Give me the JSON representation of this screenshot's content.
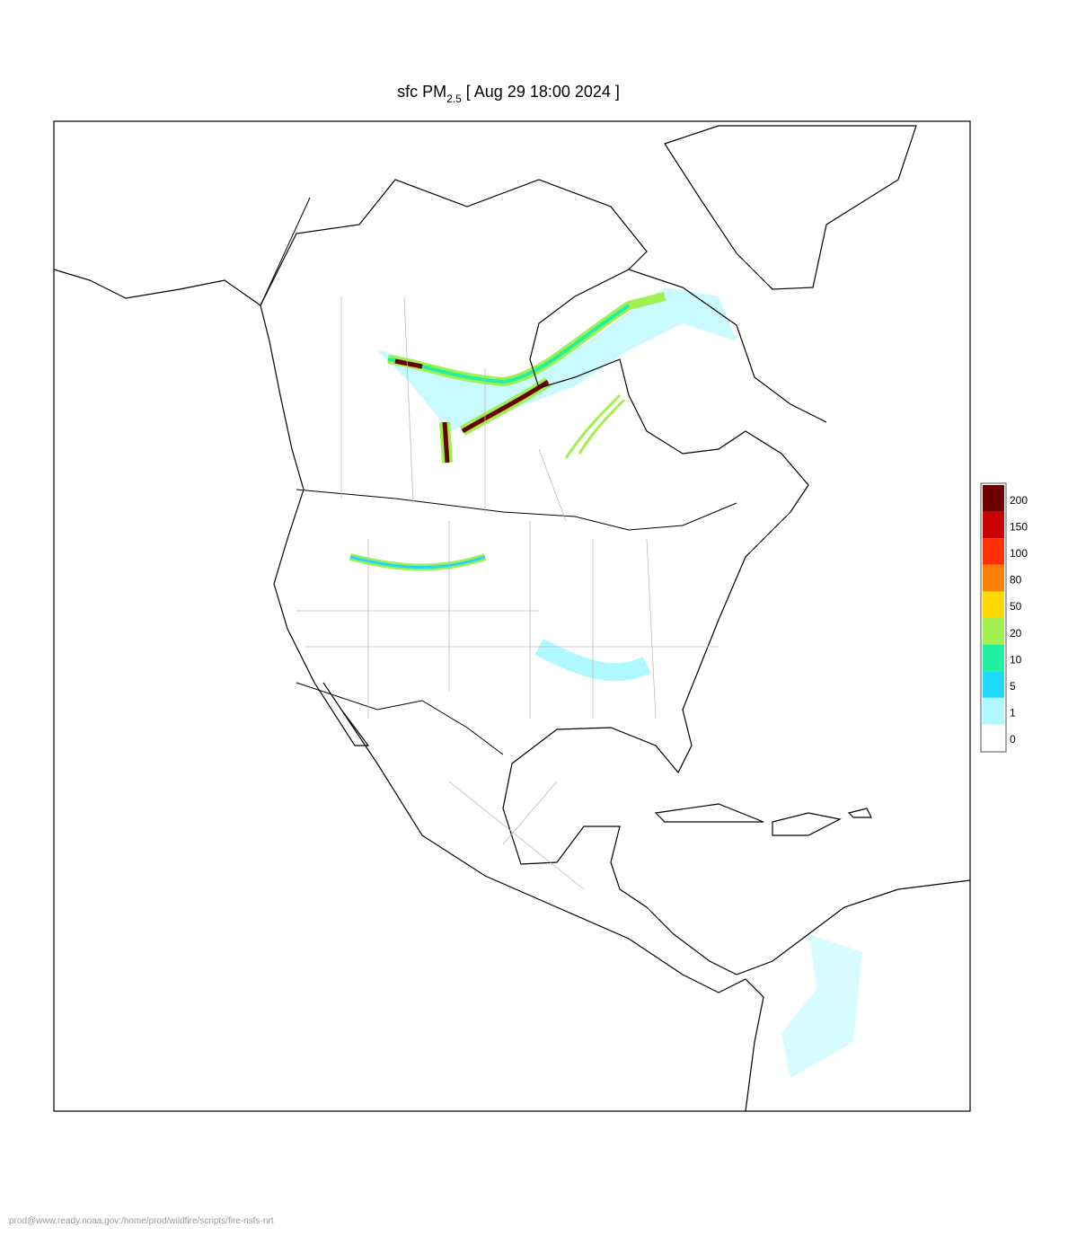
{
  "title": {
    "prefix": "sfc PM",
    "subscript": "2.5",
    "suffix": "[ Aug 29 18:00 2024 ]"
  },
  "legend": {
    "items": [
      {
        "label": 200,
        "color": "#6b0000"
      },
      {
        "label": 150,
        "color": "#c80000"
      },
      {
        "label": 100,
        "color": "#ff3000"
      },
      {
        "label": 80,
        "color": "#ff8000"
      },
      {
        "label": 50,
        "color": "#ffd800"
      },
      {
        "label": 20,
        "color": "#a0f050"
      },
      {
        "label": 10,
        "color": "#20f0a0"
      },
      {
        "label": 5,
        "color": "#20d8f8"
      },
      {
        "label": 1,
        "color": "#b0f8ff"
      },
      {
        "label": 0,
        "color": "#ffffff"
      }
    ]
  },
  "footer": "prod@www.ready.noaa.gov:/home/prod/wildfire/scripts/fire-nsfs-nrt"
}
